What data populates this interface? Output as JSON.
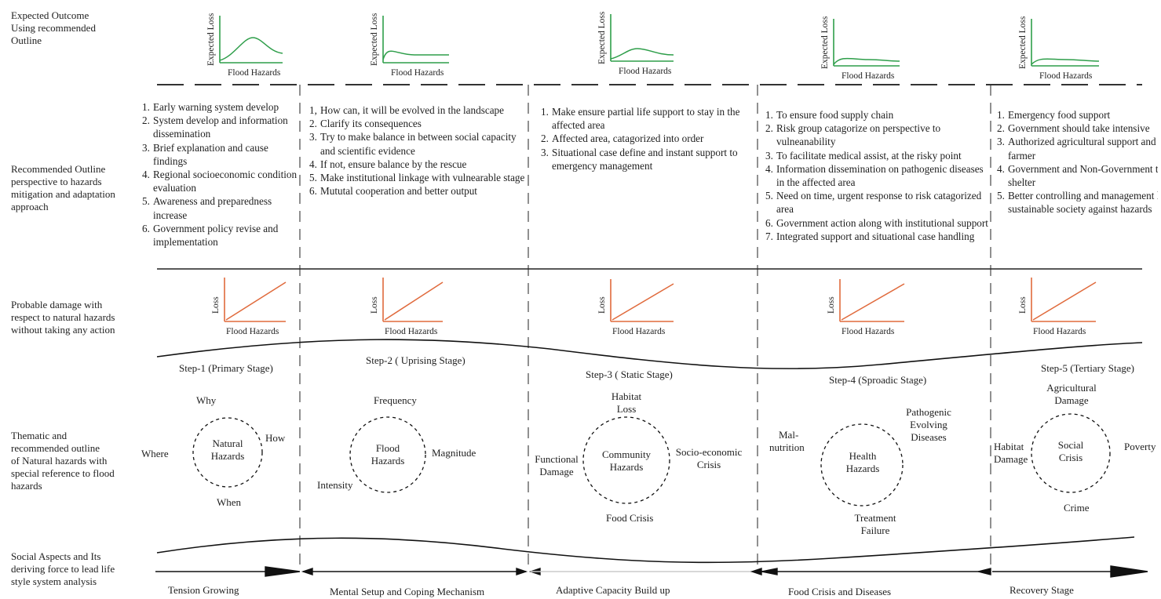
{
  "row_labels": {
    "expected": [
      "Expected Outcome",
      "Using recommended",
      "Outline"
    ],
    "recommended": [
      "Recommended Outline",
      "perspective to hazards",
      "mitigation and adaptation",
      "approach"
    ],
    "damage": [
      "Probable damage with",
      "respect to natural hazards",
      "without taking any action"
    ],
    "thematic": [
      "Thematic and",
      "recommended outline",
      "of Natural hazards with",
      "special reference to flood",
      "hazards"
    ],
    "social": [
      "Social Aspects and Its",
      "deriving force to lead life",
      "style system analysis"
    ]
  },
  "expected_charts": {
    "x_label": "Flood Hazards",
    "y_label": "Expected Loss",
    "color": "#2e9e4a"
  },
  "damage_charts": {
    "x_label": "Flood Hazards",
    "y_label": "Loss",
    "color": "#e06a3c"
  },
  "recommendations": [
    {
      "items": [
        [
          "1.",
          "Early warning system develop"
        ],
        [
          "2.",
          "System develop and information dissemination"
        ],
        [
          "3.",
          "Brief explanation and cause findings"
        ],
        [
          "4.",
          "Regional socioeconomic condition evaluation"
        ],
        [
          "5.",
          "Awareness and preparedness increase"
        ],
        [
          "6.",
          "Government policy revise and implementation"
        ]
      ]
    },
    {
      "items": [
        [
          "1,",
          "How can, it will be evolved in the landscape"
        ],
        [
          "2.",
          "Clarify its consequences"
        ],
        [
          "3.",
          "Try to make balance in between social capacity and scientific evidence"
        ],
        [
          "4.",
          "If not, ensure balance by the rescue"
        ],
        [
          "5.",
          "Make institutional linkage with vulnearable  stage"
        ],
        [
          "6.",
          "Mututal cooperation and better output"
        ]
      ]
    },
    {
      "items": [
        [
          "1.",
          "Make ensure partial life support to stay in the affected area"
        ],
        [
          "2.",
          "Affected area, catagorized into order"
        ],
        [
          "3.",
          "Situational case define and instant support to emergency management"
        ]
      ]
    },
    {
      "items": [
        [
          "1.",
          "To ensure food supply chain"
        ],
        [
          "2.",
          "Risk group catagorize on perspective to vulneanability"
        ],
        [
          "3.",
          "To facilitate medical assist, at the risky point"
        ],
        [
          "4.",
          "Information dissemination on pathogenic diseases in the affected area"
        ],
        [
          "5.",
          "Need on time, urgent response to risk catagorized area"
        ],
        [
          "6.",
          "Government action along with institutional support"
        ],
        [
          "7.",
          "Integrated support and situational case handling"
        ]
      ]
    },
    {
      "items": [
        [
          "1.",
          "Emergency food support"
        ],
        [
          "2.",
          "Government should take intensive"
        ],
        [
          "3.",
          "Authorized agricultural support and incentive to farmer"
        ],
        [
          "4.",
          "Government and Non-Government to build up shelter"
        ],
        [
          "5.",
          "Better controlling and management leads to sustainable society against hazards"
        ]
      ]
    }
  ],
  "steps": [
    "Step-1 (Primary Stage)",
    "Step-2 ( Uprising Stage)",
    "Step-3 ( Static Stage)",
    "Step-4 (Sproadic Stage)",
    "Step-5 (Tertiary Stage)"
  ],
  "themes": [
    {
      "center": [
        "Natural",
        "Hazards"
      ],
      "labels": [
        "Why",
        "How",
        "Where",
        "When"
      ]
    },
    {
      "center": [
        "Flood",
        "Hazards"
      ],
      "labels": [
        "Frequency",
        "Magnitude",
        "Intensity"
      ]
    },
    {
      "center": [
        "Community",
        "Hazards"
      ],
      "labels": [
        "Habitat",
        "Loss",
        "Socio-economic",
        "Crisis",
        "Functional",
        "Damage",
        "Food Crisis"
      ]
    },
    {
      "center": [
        "Health",
        "Hazards"
      ],
      "labels": [
        "Pathogenic",
        "Evolving",
        "Diseases",
        "Mal-",
        "nutrition",
        "Treatment",
        "Failure"
      ]
    },
    {
      "center": [
        "Social",
        "Crisis"
      ],
      "labels": [
        "Agricultural",
        "Damage",
        "Poverty",
        "Habitat",
        "Damage",
        "Crime"
      ]
    }
  ],
  "aspects": [
    "Tension Growing",
    "Mental Setup and Coping Mechanism",
    "Adaptive Capacity Build up",
    "Food Crisis and Diseases",
    "Recovery Stage"
  ],
  "colors": {
    "line": "#1a1a1a",
    "green": "#2e9e4a",
    "orange": "#e06a3c"
  }
}
